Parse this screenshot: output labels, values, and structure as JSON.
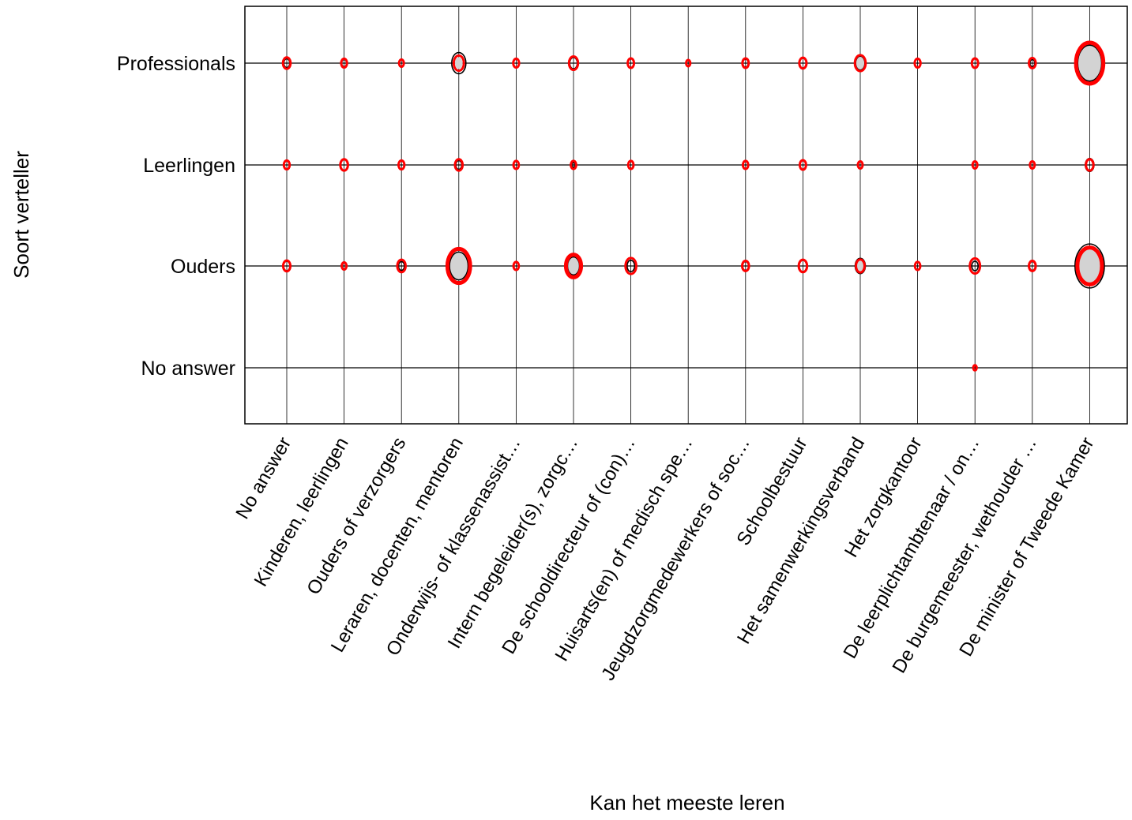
{
  "chart_data": {
    "type": "bubble-matrix",
    "xlabel": "Kan het meeste leren",
    "ylabel": "Soort verteller",
    "x_categories": [
      "No answer",
      "Kinderen, leerlingen",
      "Ouders of verzorgers",
      "Leraren, docenten, mentoren",
      "Onderwijs- of klassenassist…",
      "Intern begeleider(s), zorgc…",
      "De schooldirecteur of (con)…",
      "Huisarts(en) of medisch spe…",
      "Jeugdzorgmedewerkers of soc…",
      "Schoolbestuur",
      "Het samenwerkingsverband",
      "Het zorgkantoor",
      "De leerplichtambtenaar / on…",
      "De burgemeester, wethouder …",
      "De minister of Tweede Kamer"
    ],
    "y_categories": [
      "Professionals",
      "Leerlingen",
      "Ouders",
      "No answer"
    ],
    "grid": true,
    "legend": "none",
    "colors": {
      "red": "#ff0000",
      "black": "#000000",
      "fill": "#d3d3d3",
      "grid": "#000000"
    },
    "series_meaning": {
      "red": "red ellipse outline",
      "black": "black ellipse outline",
      "fill": "grey fill"
    },
    "points": [
      {
        "x": 0,
        "y": 0,
        "red": 1.0,
        "black": 0.6
      },
      {
        "x": 1,
        "y": 0,
        "red": 0.6,
        "black": 0.4
      },
      {
        "x": 2,
        "y": 0,
        "red": 0.4,
        "black": 0.5
      },
      {
        "x": 3,
        "y": 0,
        "red": 1.8,
        "black": 3.5,
        "fill": 1.0
      },
      {
        "x": 4,
        "y": 0,
        "red": 0.6,
        "black": 0.0
      },
      {
        "x": 5,
        "y": 0,
        "red": 1.4,
        "black": 1.0
      },
      {
        "x": 6,
        "y": 0,
        "red": 0.7,
        "black": 0.8
      },
      {
        "x": 7,
        "y": 0,
        "red": 0.3,
        "black": 0.0
      },
      {
        "x": 8,
        "y": 0,
        "red": 0.7,
        "black": 0.5
      },
      {
        "x": 9,
        "y": 0,
        "red": 0.9,
        "black": 0.8
      },
      {
        "x": 10,
        "y": 0,
        "red": 2.0,
        "black": 1.5,
        "fill": 1.4
      },
      {
        "x": 11,
        "y": 0,
        "red": 0.6,
        "black": 0.0
      },
      {
        "x": 12,
        "y": 0,
        "red": 0.7,
        "black": 0.8
      },
      {
        "x": 13,
        "y": 0,
        "red": 0.8,
        "black": 0.4
      },
      {
        "x": 14,
        "y": 0,
        "red": 13.0,
        "black": 10.0,
        "fill": 10.0
      },
      {
        "x": 0,
        "y": 1,
        "red": 0.6,
        "black": 0.0
      },
      {
        "x": 1,
        "y": 1,
        "red": 1.0,
        "black": 0.0
      },
      {
        "x": 2,
        "y": 1,
        "red": 0.6,
        "black": 0.0
      },
      {
        "x": 3,
        "y": 1,
        "red": 1.0,
        "black": 0.6
      },
      {
        "x": 4,
        "y": 1,
        "red": 0.5,
        "black": 0.0
      },
      {
        "x": 5,
        "y": 1,
        "red": 0.5,
        "black": 0.2
      },
      {
        "x": 6,
        "y": 1,
        "red": 0.5,
        "black": 0.0
      },
      {
        "x": 8,
        "y": 1,
        "red": 0.5,
        "black": 0.0
      },
      {
        "x": 9,
        "y": 1,
        "red": 0.7,
        "black": 0.0
      },
      {
        "x": 10,
        "y": 1,
        "red": 0.4,
        "black": 0.0
      },
      {
        "x": 12,
        "y": 1,
        "red": 0.4,
        "black": 0.0
      },
      {
        "x": 13,
        "y": 1,
        "red": 0.4,
        "black": 0.0
      },
      {
        "x": 14,
        "y": 1,
        "red": 1.0,
        "black": 1.3
      },
      {
        "x": 0,
        "y": 2,
        "red": 0.9,
        "black": 0.7
      },
      {
        "x": 1,
        "y": 2,
        "red": 0.4,
        "black": 0.5
      },
      {
        "x": 2,
        "y": 2,
        "red": 1.2,
        "black": 0.6
      },
      {
        "x": 3,
        "y": 2,
        "red": 9.0,
        "black": 6.0,
        "fill": 6.0
      },
      {
        "x": 4,
        "y": 2,
        "red": 0.5,
        "black": 0.0
      },
      {
        "x": 5,
        "y": 2,
        "red": 4.0,
        "black": 2.5,
        "fill": 2.5
      },
      {
        "x": 6,
        "y": 2,
        "red": 2.0,
        "black": 1.0
      },
      {
        "x": 8,
        "y": 2,
        "red": 0.8,
        "black": 0.6
      },
      {
        "x": 9,
        "y": 2,
        "red": 1.2,
        "black": 1.0
      },
      {
        "x": 10,
        "y": 2,
        "red": 1.3,
        "black": 1.8,
        "fill": 1.3
      },
      {
        "x": 11,
        "y": 2,
        "red": 0.5,
        "black": 0.0
      },
      {
        "x": 12,
        "y": 2,
        "red": 1.8,
        "black": 0.7
      },
      {
        "x": 13,
        "y": 2,
        "red": 0.8,
        "black": 0.6
      },
      {
        "x": 14,
        "y": 2,
        "red": 10.5,
        "black": 15.0,
        "fill": 10.5
      },
      {
        "x": 12,
        "y": 3,
        "red": 0.2,
        "black": 0.0
      }
    ]
  }
}
